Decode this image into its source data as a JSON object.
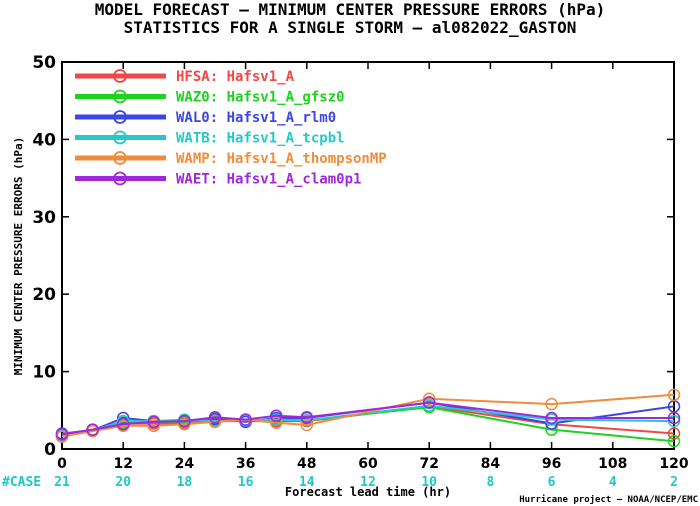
{
  "title_line1": "MODEL FORECAST – MINIMUM CENTER PRESSURE ERRORS (hPa)",
  "title_line2": "STATISTICS FOR A SINGLE STORM – al082022_GASTON",
  "case_label": "#CASE",
  "credit": "Hurricane project – NOAA/NCEP/EMC",
  "chart_data": {
    "type": "line",
    "xlabel": "Forecast lead time (hr)",
    "ylabel": "MINIMUM CENTER PRESSURE ERRORS (hPa)",
    "xlim": [
      0,
      120
    ],
    "ylim": [
      0,
      50
    ],
    "x_ticks": [
      0,
      12,
      24,
      36,
      48,
      60,
      72,
      84,
      96,
      108,
      120
    ],
    "y_ticks": [
      0,
      10,
      20,
      30,
      40,
      50
    ],
    "x": [
      0,
      6,
      12,
      18,
      24,
      30,
      36,
      42,
      48,
      72,
      96,
      120
    ],
    "case_counts": [
      {
        "x": 0,
        "n": "21"
      },
      {
        "x": 12,
        "n": "20"
      },
      {
        "x": 24,
        "n": "18"
      },
      {
        "x": 36,
        "n": "16"
      },
      {
        "x": 48,
        "n": "14"
      },
      {
        "x": 60,
        "n": "12"
      },
      {
        "x": 72,
        "n": "10"
      },
      {
        "x": 84,
        "n": "8"
      },
      {
        "x": 96,
        "n": "6"
      },
      {
        "x": 108,
        "n": "4"
      },
      {
        "x": 120,
        "n": "2"
      }
    ],
    "legend_position": "top-left",
    "series": [
      {
        "name": "HFSA: Hafsv1_A",
        "color": "#f04848",
        "values": [
          1.6,
          2.4,
          3.3,
          3.3,
          3.3,
          3.6,
          3.6,
          3.6,
          3.6,
          5.5,
          3.2,
          2.0
        ]
      },
      {
        "name": "WAZ0: Hafsv1_A_gfsz0",
        "color": "#1ed21e",
        "values": [
          1.9,
          2.5,
          3.4,
          3.5,
          3.5,
          3.8,
          3.6,
          3.8,
          3.7,
          5.4,
          2.5,
          1.0
        ]
      },
      {
        "name": "WAL0: Hafsv1_A_rlm0",
        "color": "#3c46e6",
        "values": [
          2.0,
          2.4,
          4.0,
          3.6,
          3.7,
          3.9,
          3.5,
          4.0,
          4.0,
          6.0,
          3.3,
          5.5
        ]
      },
      {
        "name": "WATB: Hafsv1_A_tcpbl",
        "color": "#28c8c8",
        "values": [
          1.8,
          2.4,
          3.6,
          3.6,
          3.8,
          3.6,
          3.7,
          3.8,
          3.7,
          5.6,
          3.8,
          3.6
        ]
      },
      {
        "name": "WAMP: Hafsv1_A_thompsonMP",
        "color": "#f08c3c",
        "values": [
          1.6,
          2.3,
          3.0,
          3.0,
          3.2,
          3.5,
          3.8,
          3.4,
          3.1,
          6.5,
          5.8,
          7.0
        ]
      },
      {
        "name": "WAET: Hafsv1_A_clam0p1",
        "color": "#a028dc",
        "values": [
          1.9,
          2.5,
          3.2,
          3.5,
          3.6,
          4.1,
          3.8,
          4.3,
          4.1,
          6.0,
          4.0,
          4.0
        ]
      }
    ]
  }
}
